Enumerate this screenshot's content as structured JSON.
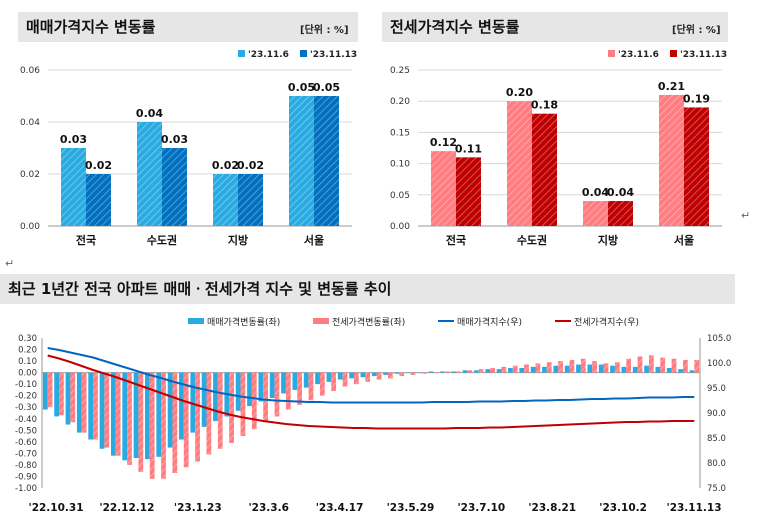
{
  "panels": {
    "sale_title": "매매가격지수 변동률",
    "sale_unit": "[단위 : %]",
    "jeonse_title": "전세가격지수 변동률",
    "jeonse_unit": "[단위 : %]",
    "trend_title": "최근 1년간 전국 아파트 매매ㆍ전세가격 지수 및 변동률 추이"
  },
  "colors": {
    "sale_prev": "#29abe2",
    "sale_cur": "#0070c0",
    "jeonse_prev": "#ff7c80",
    "jeonse_cur": "#c00000",
    "sale_index_line": "#0066c0",
    "jeonse_index_line": "#c00000",
    "title_bg": "#e6e6e6"
  },
  "chart_data": [
    {
      "type": "bar",
      "title": "매매가격지수 변동률",
      "categories": [
        "전국",
        "수도권",
        "지방",
        "서울"
      ],
      "series": [
        {
          "name": "'23.11.6",
          "values": [
            0.03,
            0.04,
            0.02,
            0.05
          ]
        },
        {
          "name": "'23.11.13",
          "values": [
            0.02,
            0.03,
            0.02,
            0.05
          ]
        }
      ],
      "ylim": [
        0,
        0.06
      ],
      "yticks": [
        "0.00",
        "0.02",
        "0.04",
        "0.06"
      ],
      "legend": "top-right",
      "grid": true
    },
    {
      "type": "bar",
      "title": "전세가격지수 변동률",
      "categories": [
        "전국",
        "수도권",
        "지방",
        "서울"
      ],
      "series": [
        {
          "name": "'23.11.6",
          "values": [
            0.12,
            0.2,
            0.04,
            0.21
          ]
        },
        {
          "name": "'23.11.13",
          "values": [
            0.11,
            0.18,
            0.04,
            0.19
          ]
        }
      ],
      "ylim": [
        0,
        0.25
      ],
      "yticks": [
        "0.00",
        "0.05",
        "0.10",
        "0.15",
        "0.20",
        "0.25"
      ],
      "legend": "top-right",
      "grid": true
    },
    {
      "type": "bar",
      "title": "최근 1년간 전국 아파트 매매ㆍ전세가격 지수 및 변동률 추이",
      "x_tick_labels": [
        "'22.10.31",
        "'22.12.12",
        "'23.1.23",
        "'23.3.6",
        "'23.4.17",
        "'23.5.29",
        "'23.7.10",
        "'23.8.21",
        "'23.10.2",
        "'23.11.13"
      ],
      "series": [
        {
          "name": "매매가격변동률(좌)",
          "kind": "bar",
          "axis": "left",
          "values": [
            -0.32,
            -0.38,
            -0.45,
            -0.52,
            -0.58,
            -0.66,
            -0.72,
            -0.76,
            -0.74,
            -0.75,
            -0.73,
            -0.65,
            -0.58,
            -0.52,
            -0.47,
            -0.42,
            -0.38,
            -0.33,
            -0.29,
            -0.25,
            -0.22,
            -0.18,
            -0.15,
            -0.13,
            -0.1,
            -0.08,
            -0.06,
            -0.05,
            -0.04,
            -0.03,
            -0.02,
            -0.01,
            0.0,
            0.0,
            0.01,
            0.01,
            0.01,
            0.02,
            0.02,
            0.03,
            0.03,
            0.04,
            0.04,
            0.05,
            0.05,
            0.06,
            0.06,
            0.07,
            0.07,
            0.07,
            0.06,
            0.05,
            0.05,
            0.06,
            0.05,
            0.04,
            0.03,
            0.02
          ]
        },
        {
          "name": "전세가격변동률(좌)",
          "kind": "bar",
          "axis": "left",
          "values": [
            -0.3,
            -0.37,
            -0.43,
            -0.52,
            -0.58,
            -0.65,
            -0.72,
            -0.8,
            -0.86,
            -0.92,
            -0.92,
            -0.87,
            -0.82,
            -0.77,
            -0.71,
            -0.66,
            -0.61,
            -0.55,
            -0.49,
            -0.43,
            -0.38,
            -0.32,
            -0.28,
            -0.24,
            -0.2,
            -0.16,
            -0.12,
            -0.1,
            -0.08,
            -0.06,
            -0.05,
            -0.03,
            -0.02,
            -0.01,
            0.0,
            0.01,
            0.01,
            0.02,
            0.03,
            0.04,
            0.05,
            0.06,
            0.07,
            0.08,
            0.09,
            0.1,
            0.11,
            0.12,
            0.1,
            0.08,
            0.09,
            0.12,
            0.14,
            0.15,
            0.13,
            0.12,
            0.11,
            0.11
          ]
        },
        {
          "name": "매매가격지수(우)",
          "kind": "line",
          "axis": "right",
          "values": [
            103.0,
            102.6,
            102.1,
            101.6,
            101.1,
            100.4,
            99.7,
            99.0,
            98.3,
            97.6,
            97.0,
            96.3,
            95.7,
            95.1,
            94.6,
            94.1,
            93.7,
            93.3,
            93.0,
            92.7,
            92.5,
            92.4,
            92.3,
            92.2,
            92.2,
            92.1,
            92.1,
            92.1,
            92.1,
            92.1,
            92.1,
            92.1,
            92.1,
            92.1,
            92.2,
            92.2,
            92.2,
            92.2,
            92.3,
            92.3,
            92.3,
            92.4,
            92.4,
            92.5,
            92.5,
            92.6,
            92.6,
            92.7,
            92.8,
            92.8,
            92.9,
            92.9,
            93.0,
            93.1,
            93.1,
            93.1,
            93.2,
            93.2
          ]
        },
        {
          "name": "전세가격지수(우)",
          "kind": "line",
          "axis": "right",
          "values": [
            101.5,
            100.9,
            100.2,
            99.4,
            98.6,
            97.9,
            97.2,
            96.4,
            95.6,
            94.8,
            94.0,
            93.2,
            92.4,
            91.7,
            91.0,
            90.3,
            89.7,
            89.2,
            88.8,
            88.4,
            88.1,
            87.8,
            87.6,
            87.4,
            87.3,
            87.2,
            87.1,
            87.0,
            87.0,
            86.9,
            86.9,
            86.9,
            86.9,
            86.9,
            86.9,
            86.9,
            87.0,
            87.0,
            87.0,
            87.1,
            87.1,
            87.2,
            87.3,
            87.4,
            87.5,
            87.6,
            87.7,
            87.8,
            87.9,
            88.0,
            88.1,
            88.2,
            88.2,
            88.3,
            88.3,
            88.4,
            88.4,
            88.4
          ]
        }
      ],
      "ylim_left": [
        -1.0,
        0.3
      ],
      "ylim_right": [
        75.0,
        105.0
      ],
      "yticks_left": [
        "0.30",
        "0.20",
        "0.10",
        "0.00",
        "-0.10",
        "-0.20",
        "-0.30",
        "-0.40",
        "-0.50",
        "-0.60",
        "-0.70",
        "-0.80",
        "-0.90",
        "-1.00"
      ],
      "yticks_right": [
        "105.0",
        "100.0",
        "95.0",
        "90.0",
        "85.0",
        "80.0",
        "75.0"
      ],
      "legend": "top-center"
    }
  ]
}
